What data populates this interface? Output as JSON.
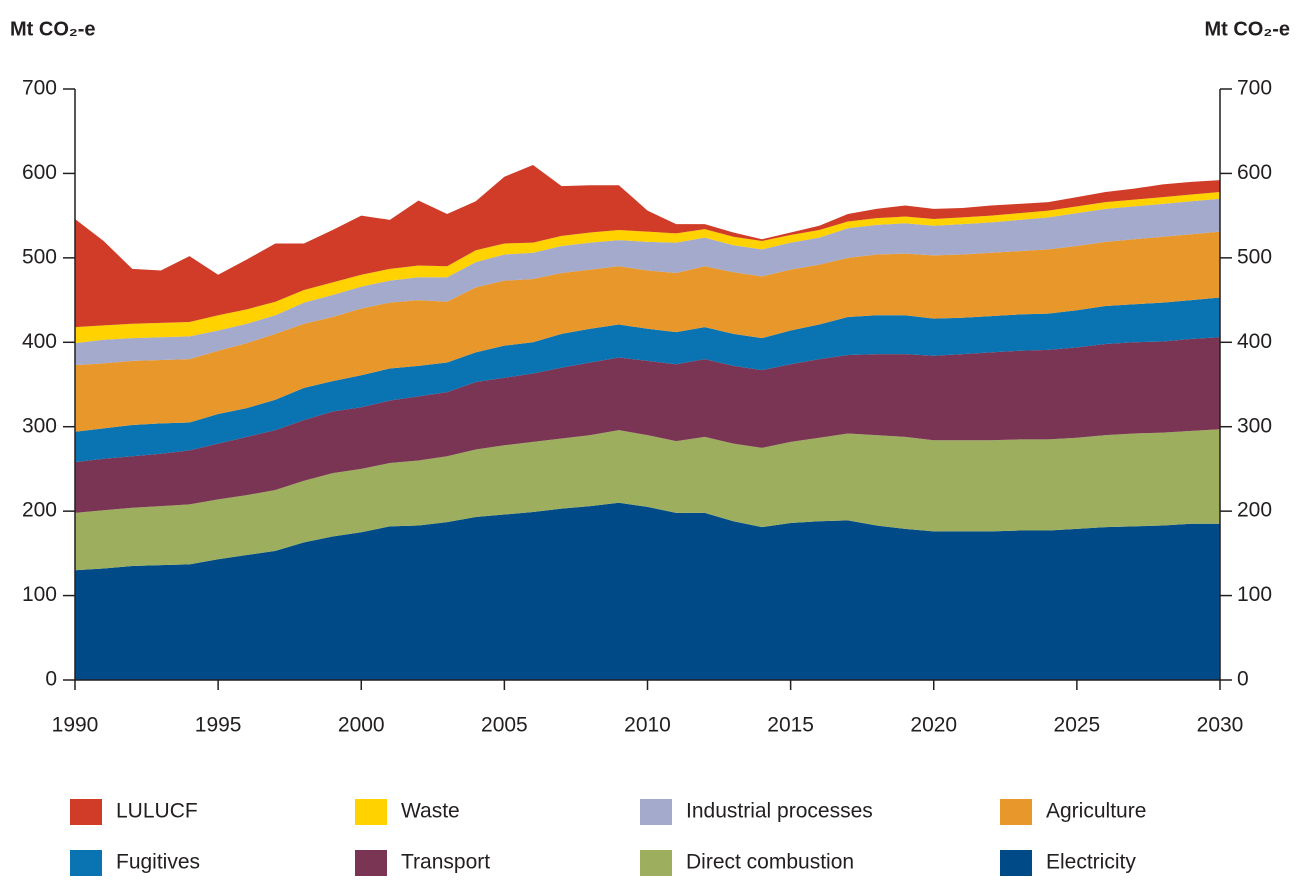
{
  "chart_data": {
    "type": "stacked_area",
    "y_label": "Mt CO₂-e",
    "y2_label": "Mt CO₂-e",
    "x": [
      1990,
      1991,
      1992,
      1993,
      1994,
      1995,
      1996,
      1997,
      1998,
      1999,
      2000,
      2001,
      2002,
      2003,
      2004,
      2005,
      2006,
      2007,
      2008,
      2009,
      2010,
      2011,
      2012,
      2013,
      2014,
      2015,
      2016,
      2017,
      2018,
      2019,
      2020,
      2021,
      2022,
      2023,
      2024,
      2025,
      2026,
      2027,
      2028,
      2029,
      2030
    ],
    "xlim": [
      1990,
      2030
    ],
    "xticks": [
      1990,
      1995,
      2000,
      2005,
      2010,
      2015,
      2020,
      2025,
      2030
    ],
    "ylim": [
      0,
      700
    ],
    "yticks": [
      0,
      100,
      200,
      300,
      400,
      500,
      600,
      700
    ],
    "y2lim": [
      0,
      700
    ],
    "y2ticks": [
      0,
      100,
      200,
      300,
      400,
      500,
      600,
      700
    ],
    "series": [
      {
        "name": "Electricity",
        "color": "#004b87",
        "values": [
          130,
          132,
          135,
          136,
          137,
          143,
          148,
          153,
          163,
          170,
          175,
          182,
          183,
          187,
          193,
          196,
          199,
          203,
          206,
          210,
          205,
          198,
          198,
          188,
          181,
          186,
          188,
          189,
          183,
          179,
          176,
          176,
          176,
          177,
          177,
          179,
          181,
          182,
          183,
          185,
          185
        ]
      },
      {
        "name": "Direct combustion",
        "color": "#9daf5f",
        "values": [
          68,
          69,
          69,
          70,
          71,
          71,
          71,
          72,
          73,
          75,
          75,
          75,
          77,
          78,
          80,
          82,
          83,
          83,
          84,
          86,
          85,
          85,
          90,
          92,
          94,
          96,
          99,
          103,
          107,
          109,
          108,
          108,
          108,
          108,
          108,
          108,
          109,
          110,
          110,
          110,
          112
        ]
      },
      {
        "name": "Transport",
        "color": "#7a3554",
        "values": [
          60,
          61,
          61,
          62,
          64,
          66,
          69,
          71,
          72,
          73,
          73,
          74,
          76,
          76,
          80,
          80,
          81,
          84,
          86,
          86,
          88,
          91,
          92,
          92,
          92,
          92,
          93,
          93,
          96,
          98,
          100,
          102,
          104,
          105,
          106,
          107,
          108,
          108,
          108,
          109,
          109
        ]
      },
      {
        "name": "Fugitives",
        "color": "#0a73b1",
        "values": [
          36,
          36,
          37,
          36,
          33,
          35,
          34,
          36,
          38,
          36,
          38,
          38,
          36,
          35,
          35,
          38,
          37,
          40,
          40,
          39,
          38,
          38,
          38,
          38,
          38,
          40,
          41,
          45,
          46,
          46,
          44,
          43,
          43,
          43,
          43,
          44,
          45,
          45,
          46,
          46,
          47
        ]
      },
      {
        "name": "Agriculture",
        "color": "#e8982a",
        "values": [
          79,
          77,
          76,
          75,
          75,
          75,
          77,
          78,
          76,
          76,
          79,
          78,
          78,
          72,
          77,
          77,
          75,
          72,
          70,
          69,
          69,
          70,
          72,
          73,
          73,
          72,
          71,
          70,
          72,
          73,
          75,
          75,
          75,
          75,
          76,
          76,
          76,
          77,
          78,
          78,
          78
        ]
      },
      {
        "name": "Industrial processes",
        "color": "#a4aacb",
        "values": [
          26,
          28,
          27,
          27,
          27,
          24,
          23,
          22,
          25,
          26,
          26,
          26,
          27,
          29,
          30,
          31,
          31,
          32,
          32,
          31,
          34,
          36,
          34,
          32,
          32,
          32,
          32,
          35,
          35,
          36,
          35,
          36,
          36,
          37,
          38,
          39,
          39,
          39,
          39,
          39,
          39
        ]
      },
      {
        "name": "Waste",
        "color": "#ffd200",
        "values": [
          19,
          17,
          17,
          17,
          17,
          18,
          17,
          16,
          15,
          15,
          14,
          14,
          14,
          13,
          14,
          13,
          12,
          12,
          12,
          12,
          12,
          11,
          10,
          10,
          10,
          9,
          9,
          8,
          8,
          8,
          8,
          8,
          8,
          8,
          8,
          8,
          8,
          8,
          8,
          8,
          8
        ]
      },
      {
        "name": "LULUCF",
        "color": "#d03c27",
        "values": [
          128,
          100,
          65,
          62,
          78,
          48,
          59,
          69,
          55,
          62,
          70,
          58,
          77,
          62,
          58,
          79,
          92,
          59,
          56,
          53,
          25,
          11,
          6,
          5,
          2,
          3,
          5,
          9,
          11,
          13,
          12,
          11,
          12,
          11,
          10,
          11,
          12,
          13,
          15,
          15,
          14
        ]
      }
    ]
  }
}
